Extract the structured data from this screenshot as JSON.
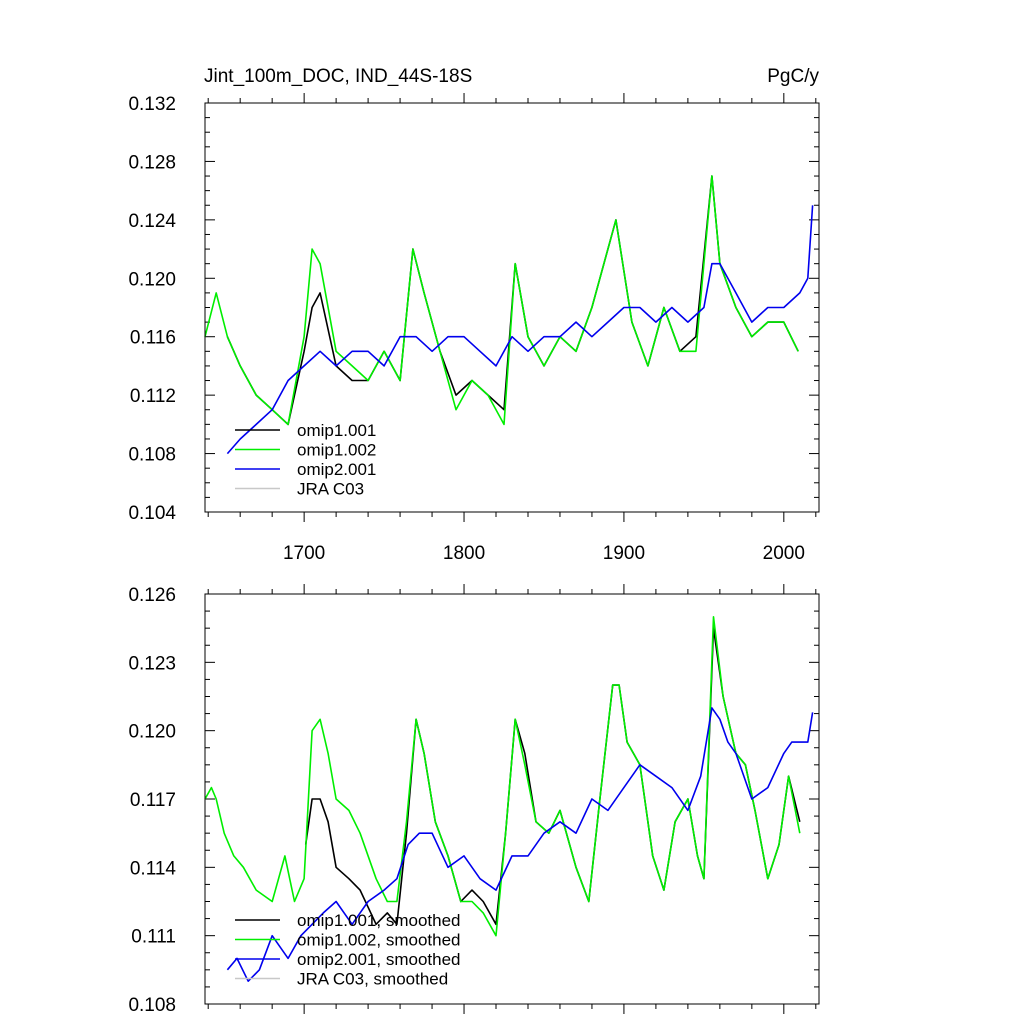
{
  "chart_data": [
    {
      "type": "line",
      "title_left": "Jint_100m_DOC, IND_44S-18S",
      "title_right": "PgC/y",
      "xlim": [
        1638,
        2022
      ],
      "ylim": [
        0.104,
        0.132
      ],
      "x_ticks": [
        1700,
        1800,
        1900,
        2000
      ],
      "x_tick_labels": [
        "1700",
        "1800",
        "1900",
        "2000"
      ],
      "y_ticks": [
        0.104,
        0.108,
        0.112,
        0.116,
        0.12,
        0.124,
        0.128,
        0.132
      ],
      "y_tick_labels": [
        "0.104",
        "0.108",
        "0.112",
        "0.116",
        "0.120",
        "0.124",
        "0.128",
        "0.132"
      ],
      "legend_position": "bottom-left",
      "series": [
        {
          "name": "omip1.001",
          "color": "#000000",
          "x": [
            1652,
            1660,
            1670,
            1680,
            1690,
            1700,
            1705,
            1710,
            1720,
            1730,
            1740,
            1750,
            1760,
            1768,
            1775,
            1785,
            1795,
            1805,
            1815,
            1825,
            1832,
            1840,
            1850,
            1860,
            1870,
            1880,
            1895,
            1905,
            1915,
            1925,
            1935,
            1945,
            1955,
            1960,
            1970,
            1980,
            1990,
            2000,
            2009
          ],
          "values": [
            0.116,
            0.114,
            0.112,
            0.111,
            0.11,
            0.115,
            0.118,
            0.119,
            0.114,
            0.113,
            0.113,
            0.115,
            0.113,
            0.122,
            0.119,
            0.115,
            0.112,
            0.113,
            0.112,
            0.111,
            0.121,
            0.116,
            0.114,
            0.116,
            0.115,
            0.118,
            0.124,
            0.117,
            0.114,
            0.118,
            0.115,
            0.116,
            0.127,
            0.121,
            0.118,
            0.116,
            0.117,
            0.117,
            0.115
          ]
        },
        {
          "name": "omip1.002",
          "color": "#00ee00",
          "x": [
            1638,
            1645,
            1652,
            1660,
            1670,
            1680,
            1690,
            1700,
            1705,
            1710,
            1720,
            1730,
            1740,
            1750,
            1760,
            1768,
            1775,
            1785,
            1795,
            1805,
            1815,
            1825,
            1832,
            1840,
            1850,
            1860,
            1870,
            1880,
            1895,
            1905,
            1915,
            1925,
            1935,
            1945,
            1955,
            1960,
            1970,
            1980,
            1990,
            2000,
            2009
          ],
          "values": [
            0.116,
            0.119,
            0.116,
            0.114,
            0.112,
            0.111,
            0.11,
            0.116,
            0.122,
            0.121,
            0.115,
            0.114,
            0.113,
            0.115,
            0.113,
            0.122,
            0.119,
            0.115,
            0.111,
            0.113,
            0.112,
            0.11,
            0.121,
            0.116,
            0.114,
            0.116,
            0.115,
            0.118,
            0.124,
            0.117,
            0.114,
            0.118,
            0.115,
            0.115,
            0.127,
            0.121,
            0.118,
            0.116,
            0.117,
            0.117,
            0.115
          ]
        },
        {
          "name": "omip2.001",
          "color": "#0000ee",
          "x": [
            1652,
            1660,
            1670,
            1680,
            1690,
            1700,
            1710,
            1720,
            1730,
            1740,
            1750,
            1760,
            1770,
            1780,
            1790,
            1800,
            1810,
            1820,
            1830,
            1840,
            1850,
            1860,
            1870,
            1880,
            1890,
            1900,
            1910,
            1920,
            1930,
            1940,
            1950,
            1955,
            1960,
            1970,
            1980,
            1990,
            2000,
            2010,
            2015,
            2018
          ],
          "values": [
            0.108,
            0.109,
            0.11,
            0.111,
            0.113,
            0.114,
            0.115,
            0.114,
            0.115,
            0.115,
            0.114,
            0.116,
            0.116,
            0.115,
            0.116,
            0.116,
            0.115,
            0.114,
            0.116,
            0.115,
            0.116,
            0.116,
            0.117,
            0.116,
            0.117,
            0.118,
            0.118,
            0.117,
            0.118,
            0.117,
            0.118,
            0.121,
            0.121,
            0.119,
            0.117,
            0.118,
            0.118,
            0.119,
            0.12,
            0.125
          ]
        },
        {
          "name": "JRA C03",
          "color": "#c8c8c8",
          "x": [],
          "values": []
        }
      ]
    },
    {
      "type": "line",
      "xlim": [
        1638,
        2022
      ],
      "ylim": [
        0.108,
        0.126
      ],
      "y_ticks": [
        0.108,
        0.111,
        0.114,
        0.117,
        0.12,
        0.123,
        0.126
      ],
      "y_tick_labels": [
        "0.108",
        "0.111",
        "0.114",
        "0.117",
        "0.120",
        "0.123",
        "0.126"
      ],
      "legend_position": "bottom-left",
      "series": [
        {
          "name": "omip1.001, smoothed",
          "color": "#000000",
          "x": [
            1701,
            1705,
            1710,
            1715,
            1720,
            1728,
            1735,
            1745,
            1752,
            1758,
            1764,
            1770,
            1775,
            1782,
            1790,
            1798,
            1805,
            1812,
            1820,
            1826,
            1832,
            1838,
            1845,
            1853,
            1860,
            1870,
            1878,
            1885,
            1893,
            1897,
            1902,
            1910,
            1918,
            1925,
            1932,
            1940,
            1946,
            1950,
            1956,
            1962,
            1970,
            1976,
            1982,
            1990,
            1997,
            2003,
            2010
          ],
          "values": [
            0.115,
            0.117,
            0.117,
            0.116,
            0.114,
            0.1135,
            0.113,
            0.1115,
            0.112,
            0.1115,
            0.1155,
            0.1205,
            0.119,
            0.116,
            0.1145,
            0.1125,
            0.113,
            0.1125,
            0.1115,
            0.1155,
            0.1205,
            0.119,
            0.116,
            0.1155,
            0.1165,
            0.114,
            0.1125,
            0.117,
            0.122,
            0.122,
            0.1195,
            0.1185,
            0.1145,
            0.113,
            0.116,
            0.117,
            0.1145,
            0.1135,
            0.1245,
            0.1215,
            0.119,
            0.1185,
            0.1165,
            0.1135,
            0.115,
            0.118,
            0.116
          ]
        },
        {
          "name": "omip1.002, smoothed",
          "color": "#00ee00",
          "x": [
            1638,
            1642,
            1645,
            1650,
            1656,
            1662,
            1670,
            1680,
            1688,
            1694,
            1700,
            1705,
            1710,
            1715,
            1720,
            1728,
            1735,
            1745,
            1752,
            1758,
            1764,
            1770,
            1775,
            1782,
            1790,
            1798,
            1805,
            1812,
            1820,
            1826,
            1832,
            1838,
            1845,
            1853,
            1860,
            1870,
            1878,
            1885,
            1893,
            1897,
            1902,
            1910,
            1918,
            1925,
            1932,
            1940,
            1946,
            1950,
            1956,
            1962,
            1970,
            1976,
            1982,
            1990,
            1997,
            2003,
            2010
          ],
          "values": [
            0.117,
            0.1175,
            0.117,
            0.1155,
            0.1145,
            0.114,
            0.113,
            0.1125,
            0.1145,
            0.1125,
            0.1135,
            0.12,
            0.1205,
            0.119,
            0.117,
            0.1165,
            0.1155,
            0.1135,
            0.1125,
            0.1125,
            0.116,
            0.1205,
            0.119,
            0.116,
            0.1145,
            0.1125,
            0.1125,
            0.112,
            0.111,
            0.1155,
            0.1205,
            0.1185,
            0.116,
            0.1155,
            0.1165,
            0.114,
            0.1125,
            0.117,
            0.122,
            0.122,
            0.1195,
            0.1185,
            0.1145,
            0.113,
            0.116,
            0.117,
            0.1145,
            0.1135,
            0.125,
            0.1215,
            0.119,
            0.1185,
            0.1165,
            0.1135,
            0.115,
            0.118,
            0.1155
          ]
        },
        {
          "name": "omip2.001, smoothed",
          "color": "#0000ee",
          "x": [
            1652,
            1658,
            1665,
            1672,
            1680,
            1690,
            1698,
            1705,
            1712,
            1720,
            1730,
            1740,
            1750,
            1758,
            1765,
            1772,
            1780,
            1790,
            1800,
            1810,
            1820,
            1830,
            1840,
            1850,
            1860,
            1870,
            1880,
            1890,
            1900,
            1910,
            1920,
            1930,
            1940,
            1948,
            1955,
            1960,
            1965,
            1970,
            1980,
            1990,
            2000,
            2005,
            2010,
            2015,
            2018
          ],
          "values": [
            0.1095,
            0.11,
            0.109,
            0.1095,
            0.111,
            0.11,
            0.111,
            0.1115,
            0.112,
            0.1125,
            0.1115,
            0.1125,
            0.113,
            0.1135,
            0.115,
            0.1155,
            0.1155,
            0.114,
            0.1145,
            0.1135,
            0.113,
            0.1145,
            0.1145,
            0.1155,
            0.116,
            0.1155,
            0.117,
            0.1165,
            0.1175,
            0.1185,
            0.118,
            0.1175,
            0.1165,
            0.118,
            0.121,
            0.1205,
            0.1195,
            0.119,
            0.117,
            0.1175,
            0.119,
            0.1195,
            0.1195,
            0.1195,
            0.1208
          ]
        },
        {
          "name": "JRA C03, smoothed",
          "color": "#c8c8c8",
          "x": [],
          "values": []
        }
      ]
    }
  ]
}
